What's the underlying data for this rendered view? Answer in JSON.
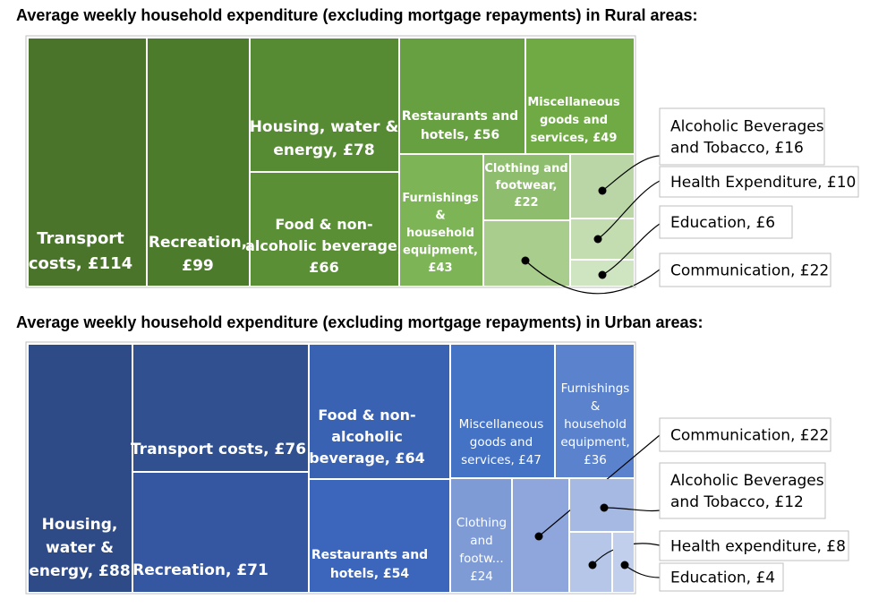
{
  "chart_data": [
    {
      "type": "treemap",
      "title": "Average weekly household expenditure (excluding mortgage repayments) in Rural areas:",
      "categories": [
        {
          "name": "Transport costs",
          "label_lines": [
            "Transport",
            "costs, £114"
          ],
          "value": 114,
          "color": "#4a7429"
        },
        {
          "name": "Recreation",
          "label_lines": [
            "Recreation,",
            "£99"
          ],
          "value": 99,
          "color": "#4d7b2c"
        },
        {
          "name": "Housing, water & energy",
          "label_lines": [
            "Housing, water &",
            "energy, £78"
          ],
          "value": 78,
          "color": "#578b33"
        },
        {
          "name": "Food & non-alcoholic beverage",
          "label_lines": [
            "Food & non-",
            "alcoholic beverage,",
            "£66"
          ],
          "value": 66,
          "color": "#5a8f35"
        },
        {
          "name": "Restaurants and hotels",
          "label_lines": [
            "Restaurants and",
            "hotels, £56"
          ],
          "value": 56,
          "color": "#67a040"
        },
        {
          "name": "Miscellaneous goods and services",
          "label_lines": [
            "Miscellaneous",
            "goods and",
            "services, £49"
          ],
          "value": 49,
          "color": "#70aa45"
        },
        {
          "name": "Furnishings & household equipment",
          "label_lines": [
            "Furnishings",
            "&",
            "household",
            "equipment,",
            "£43"
          ],
          "value": 43,
          "color": "#7cb456"
        },
        {
          "name": "Clothing and footwear",
          "label_lines": [
            "Clothing and",
            "footwear,",
            "£22"
          ],
          "value": 22,
          "color": "#8fbd6e"
        },
        {
          "name": "Communication",
          "label_lines": [],
          "value": 22,
          "color": "#a8cd8c",
          "callout": "Communication, £22"
        },
        {
          "name": "Alcoholic Beverages and Tobacco",
          "label_lines": [],
          "value": 16,
          "color": "#bad6a6",
          "callout": "Alcoholic Beverages and Tobacco, £16"
        },
        {
          "name": "Health Expenditure",
          "label_lines": [],
          "value": 10,
          "color": "#c3ddb0",
          "callout": "Health Expenditure, £10"
        },
        {
          "name": "Education",
          "label_lines": [],
          "value": 6,
          "color": "#cfe4c0",
          "callout": "Education, £6"
        }
      ]
    },
    {
      "type": "treemap",
      "title": "Average weekly household expenditure (excluding mortgage repayments) in Urban areas:",
      "categories": [
        {
          "name": "Housing, water & energy",
          "label_lines": [
            "Housing,",
            "water &",
            "energy, £88"
          ],
          "value": 88,
          "color": "#2e4b87"
        },
        {
          "name": "Transport costs",
          "label_lines": [
            "Transport costs, £76"
          ],
          "value": 76,
          "color": "#30508f"
        },
        {
          "name": "Recreation",
          "label_lines": [
            "Recreation, £71"
          ],
          "value": 71,
          "color": "#3556a0"
        },
        {
          "name": "Food & non-alcoholic beverage",
          "label_lines": [
            "Food & non-",
            "alcoholic",
            "beverage, £64"
          ],
          "value": 64,
          "color": "#3a62b2"
        },
        {
          "name": "Restaurants and hotels",
          "label_lines": [
            "Restaurants and",
            "hotels, £54"
          ],
          "value": 54,
          "color": "#3c66bb"
        },
        {
          "name": "Miscellaneous goods and services",
          "label_lines": [
            "Miscellaneous",
            "goods and",
            "services, £47"
          ],
          "value": 47,
          "color": "#4472c4"
        },
        {
          "name": "Furnishings & household equipment",
          "label_lines": [
            "Furnishings",
            "&",
            "household",
            "equipment,",
            "£36"
          ],
          "value": 36,
          "color": "#5b82cd"
        },
        {
          "name": "Clothing and footwear",
          "label_lines": [
            "Clothing",
            "and",
            "footw...",
            "£24"
          ],
          "value": 24,
          "color": "#7e9bd6"
        },
        {
          "name": "Communication",
          "label_lines": [],
          "value": 22,
          "color": "#8ea6dc",
          "callout": "Communication, £22"
        },
        {
          "name": "Alcoholic Beverages and Tobacco",
          "label_lines": [],
          "value": 12,
          "color": "#a6b9e3",
          "callout": "Alcoholic Beverages and Tobacco, £12"
        },
        {
          "name": "Health expenditure",
          "label_lines": [],
          "value": 8,
          "color": "#b6c6e9",
          "callout": "Health expenditure, £8"
        },
        {
          "name": "Education",
          "label_lines": [],
          "value": 4,
          "color": "#c2cfec",
          "callout": "Education, £4"
        }
      ]
    }
  ]
}
